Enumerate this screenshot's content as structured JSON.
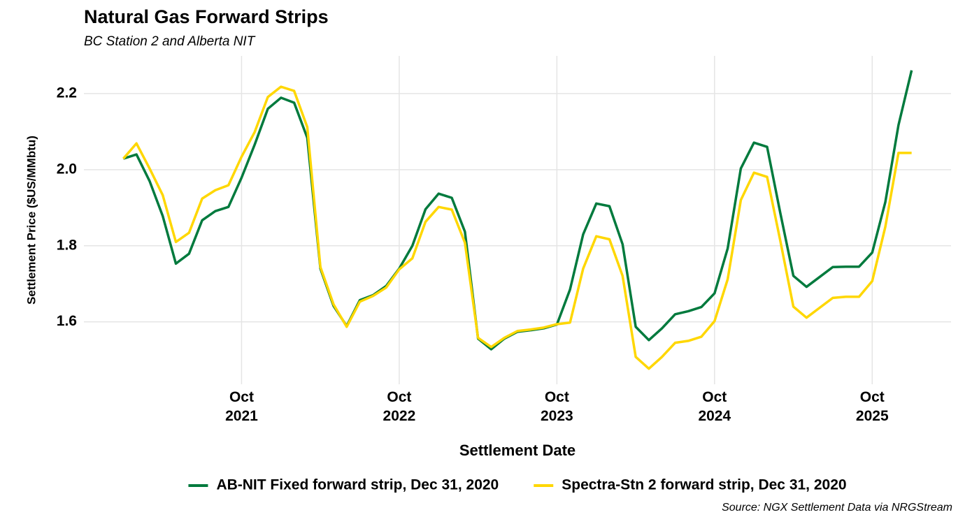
{
  "chart_data": {
    "type": "line",
    "title": "Natural Gas Forward Strips",
    "subtitle": "BC Station 2 and Alberta NIT",
    "x_label": "Settlement Date",
    "y_label": "Settlement Price ($US/MMbtu)",
    "caption": "Source: NGX Settlement Data via NRGStream",
    "x": [
      "2021-01",
      "2021-02",
      "2021-03",
      "2021-04",
      "2021-05",
      "2021-06",
      "2021-07",
      "2021-08",
      "2021-09",
      "2021-10",
      "2021-11",
      "2021-12",
      "2022-01",
      "2022-02",
      "2022-03",
      "2022-04",
      "2022-05",
      "2022-06",
      "2022-07",
      "2022-08",
      "2022-09",
      "2022-10",
      "2022-11",
      "2022-12",
      "2023-01",
      "2023-02",
      "2023-03",
      "2023-04",
      "2023-05",
      "2023-06",
      "2023-07",
      "2023-08",
      "2023-09",
      "2023-10",
      "2023-11",
      "2023-12",
      "2024-01",
      "2024-02",
      "2024-03",
      "2024-04",
      "2024-05",
      "2024-06",
      "2024-07",
      "2024-08",
      "2024-09",
      "2024-10",
      "2024-11",
      "2024-12",
      "2025-01",
      "2025-02",
      "2025-03",
      "2025-04",
      "2025-05",
      "2025-06",
      "2025-07",
      "2025-08",
      "2025-09",
      "2025-10",
      "2025-11",
      "2025-12",
      "2026-01"
    ],
    "series": [
      {
        "name": "AB-NIT Fixed forward strip, Dec 31, 2020",
        "color": "#007a3d",
        "values": [
          2.029,
          2.04,
          1.97,
          1.878,
          1.753,
          1.779,
          1.867,
          1.891,
          1.902,
          1.979,
          2.066,
          2.16,
          2.189,
          2.176,
          2.084,
          1.74,
          1.642,
          1.589,
          1.657,
          1.67,
          1.694,
          1.74,
          1.8,
          1.896,
          1.937,
          1.926,
          1.837,
          1.556,
          1.528,
          1.556,
          1.574,
          1.578,
          1.583,
          1.593,
          1.685,
          1.83,
          1.911,
          1.904,
          1.804,
          1.587,
          1.552,
          1.583,
          1.62,
          1.628,
          1.639,
          1.675,
          1.793,
          2.003,
          2.071,
          2.06,
          1.887,
          1.721,
          1.692,
          1.718,
          1.744,
          1.745,
          1.745,
          1.782,
          1.915,
          2.117,
          2.261
        ]
      },
      {
        "name": "Spectra-Stn 2 forward strip, Dec 31, 2020",
        "color": "#ffd700",
        "values": [
          2.029,
          2.069,
          2.003,
          1.933,
          1.81,
          1.834,
          1.924,
          1.946,
          1.959,
          2.034,
          2.099,
          2.191,
          2.218,
          2.207,
          2.112,
          1.744,
          1.646,
          1.587,
          1.653,
          1.668,
          1.69,
          1.738,
          1.767,
          1.863,
          1.902,
          1.895,
          1.808,
          1.558,
          1.534,
          1.558,
          1.576,
          1.58,
          1.585,
          1.594,
          1.598,
          1.74,
          1.825,
          1.817,
          1.721,
          1.508,
          1.477,
          1.508,
          1.545,
          1.55,
          1.561,
          1.602,
          1.712,
          1.92,
          1.992,
          1.981,
          1.814,
          1.64,
          1.611,
          1.637,
          1.663,
          1.666,
          1.666,
          1.707,
          1.85,
          2.044,
          2.044
        ]
      }
    ],
    "xlim": [
      "2020-10",
      "2026-04"
    ],
    "xticks": [
      {
        "value": "2021-10",
        "label": "Oct\n2021"
      },
      {
        "value": "2022-10",
        "label": "Oct\n2022"
      },
      {
        "value": "2023-10",
        "label": "Oct\n2023"
      },
      {
        "value": "2024-10",
        "label": "Oct\n2024"
      },
      {
        "value": "2025-10",
        "label": "Oct\n2025"
      }
    ],
    "ylim": [
      1.436,
      2.299
    ],
    "yticks": [
      1.6,
      1.8,
      {
        "value": 2,
        "label": "2.0"
      },
      2.2
    ],
    "grid": true,
    "legend": "bottom"
  }
}
